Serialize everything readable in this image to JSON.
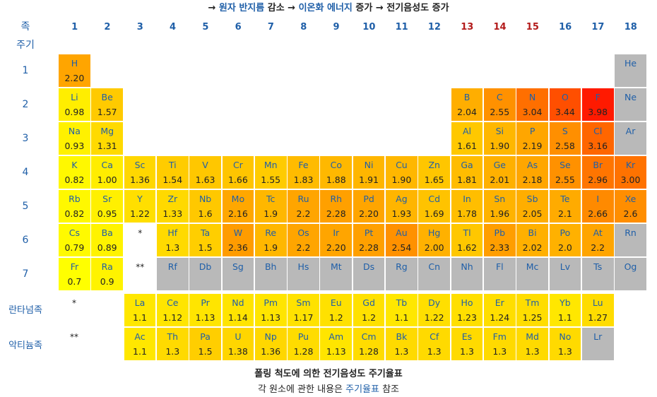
{
  "title_line": {
    "arrow1": "→ ",
    "part1": "원자 반지름",
    "part1b": " 감소 → ",
    "part2": "이온화 에너지",
    "part2b": " 증가 → ",
    "part3": "전기음성도",
    "part3b": " 증가"
  },
  "header": {
    "group_label": "족",
    "period_label": "주기",
    "groups": [
      "1",
      "2",
      "3",
      "4",
      "5",
      "6",
      "7",
      "8",
      "9",
      "10",
      "11",
      "12",
      "13",
      "14",
      "15",
      "16",
      "17",
      "18"
    ],
    "group_colors_note": "13-15 red",
    "red_groups": [
      13,
      14,
      15
    ],
    "periods": [
      "1",
      "2",
      "3",
      "4",
      "5",
      "6",
      "7"
    ],
    "lanthanide_label": "란타넘족",
    "actinide_label": "악티늄족",
    "lan_marker": "*",
    "act_marker": "**"
  },
  "chart_data": {
    "type": "table",
    "title": "폴링 척도에 의한 전기음성도 주기율표",
    "elements": [
      {
        "s": "H",
        "p": 1,
        "g": 1,
        "en": "2.20",
        "v": 2.2
      },
      {
        "s": "He",
        "p": 1,
        "g": 18,
        "en": "",
        "v": null
      },
      {
        "s": "Li",
        "p": 2,
        "g": 1,
        "en": "0.98",
        "v": 0.98
      },
      {
        "s": "Be",
        "p": 2,
        "g": 2,
        "en": "1.57",
        "v": 1.57
      },
      {
        "s": "B",
        "p": 2,
        "g": 13,
        "en": "2.04",
        "v": 2.04
      },
      {
        "s": "C",
        "p": 2,
        "g": 14,
        "en": "2.55",
        "v": 2.55
      },
      {
        "s": "N",
        "p": 2,
        "g": 15,
        "en": "3.04",
        "v": 3.04
      },
      {
        "s": "O",
        "p": 2,
        "g": 16,
        "en": "3.44",
        "v": 3.44
      },
      {
        "s": "F",
        "p": 2,
        "g": 17,
        "en": "3.98",
        "v": 3.98
      },
      {
        "s": "Ne",
        "p": 2,
        "g": 18,
        "en": "",
        "v": null
      },
      {
        "s": "Na",
        "p": 3,
        "g": 1,
        "en": "0.93",
        "v": 0.93
      },
      {
        "s": "Mg",
        "p": 3,
        "g": 2,
        "en": "1.31",
        "v": 1.31
      },
      {
        "s": "Al",
        "p": 3,
        "g": 13,
        "en": "1.61",
        "v": 1.61
      },
      {
        "s": "Si",
        "p": 3,
        "g": 14,
        "en": "1.90",
        "v": 1.9
      },
      {
        "s": "P",
        "p": 3,
        "g": 15,
        "en": "2.19",
        "v": 2.19
      },
      {
        "s": "S",
        "p": 3,
        "g": 16,
        "en": "2.58",
        "v": 2.58
      },
      {
        "s": "Cl",
        "p": 3,
        "g": 17,
        "en": "3.16",
        "v": 3.16
      },
      {
        "s": "Ar",
        "p": 3,
        "g": 18,
        "en": "",
        "v": null
      },
      {
        "s": "K",
        "p": 4,
        "g": 1,
        "en": "0.82",
        "v": 0.82
      },
      {
        "s": "Ca",
        "p": 4,
        "g": 2,
        "en": "1.00",
        "v": 1.0
      },
      {
        "s": "Sc",
        "p": 4,
        "g": 3,
        "en": "1.36",
        "v": 1.36
      },
      {
        "s": "Ti",
        "p": 4,
        "g": 4,
        "en": "1.54",
        "v": 1.54
      },
      {
        "s": "V",
        "p": 4,
        "g": 5,
        "en": "1.63",
        "v": 1.63
      },
      {
        "s": "Cr",
        "p": 4,
        "g": 6,
        "en": "1.66",
        "v": 1.66
      },
      {
        "s": "Mn",
        "p": 4,
        "g": 7,
        "en": "1.55",
        "v": 1.55
      },
      {
        "s": "Fe",
        "p": 4,
        "g": 8,
        "en": "1.83",
        "v": 1.83
      },
      {
        "s": "Co",
        "p": 4,
        "g": 9,
        "en": "1.88",
        "v": 1.88
      },
      {
        "s": "Ni",
        "p": 4,
        "g": 10,
        "en": "1.91",
        "v": 1.91
      },
      {
        "s": "Cu",
        "p": 4,
        "g": 11,
        "en": "1.90",
        "v": 1.9
      },
      {
        "s": "Zn",
        "p": 4,
        "g": 12,
        "en": "1.65",
        "v": 1.65
      },
      {
        "s": "Ga",
        "p": 4,
        "g": 13,
        "en": "1.81",
        "v": 1.81
      },
      {
        "s": "Ge",
        "p": 4,
        "g": 14,
        "en": "2.01",
        "v": 2.01
      },
      {
        "s": "As",
        "p": 4,
        "g": 15,
        "en": "2.18",
        "v": 2.18
      },
      {
        "s": "Se",
        "p": 4,
        "g": 16,
        "en": "2.55",
        "v": 2.55
      },
      {
        "s": "Br",
        "p": 4,
        "g": 17,
        "en": "2.96",
        "v": 2.96
      },
      {
        "s": "Kr",
        "p": 4,
        "g": 18,
        "en": "3.00",
        "v": 3.0
      },
      {
        "s": "Rb",
        "p": 5,
        "g": 1,
        "en": "0.82",
        "v": 0.82
      },
      {
        "s": "Sr",
        "p": 5,
        "g": 2,
        "en": "0.95",
        "v": 0.95
      },
      {
        "s": "Y",
        "p": 5,
        "g": 3,
        "en": "1.22",
        "v": 1.22
      },
      {
        "s": "Zr",
        "p": 5,
        "g": 4,
        "en": "1.33",
        "v": 1.33
      },
      {
        "s": "Nb",
        "p": 5,
        "g": 5,
        "en": "1.6",
        "v": 1.6
      },
      {
        "s": "Mo",
        "p": 5,
        "g": 6,
        "en": "2.16",
        "v": 2.16
      },
      {
        "s": "Tc",
        "p": 5,
        "g": 7,
        "en": "1.9",
        "v": 1.9
      },
      {
        "s": "Ru",
        "p": 5,
        "g": 8,
        "en": "2.2",
        "v": 2.2
      },
      {
        "s": "Rh",
        "p": 5,
        "g": 9,
        "en": "2.28",
        "v": 2.28
      },
      {
        "s": "Pd",
        "p": 5,
        "g": 10,
        "en": "2.20",
        "v": 2.2
      },
      {
        "s": "Ag",
        "p": 5,
        "g": 11,
        "en": "1.93",
        "v": 1.93
      },
      {
        "s": "Cd",
        "p": 5,
        "g": 12,
        "en": "1.69",
        "v": 1.69
      },
      {
        "s": "In",
        "p": 5,
        "g": 13,
        "en": "1.78",
        "v": 1.78
      },
      {
        "s": "Sn",
        "p": 5,
        "g": 14,
        "en": "1.96",
        "v": 1.96
      },
      {
        "s": "Sb",
        "p": 5,
        "g": 15,
        "en": "2.05",
        "v": 2.05
      },
      {
        "s": "Te",
        "p": 5,
        "g": 16,
        "en": "2.1",
        "v": 2.1
      },
      {
        "s": "I",
        "p": 5,
        "g": 17,
        "en": "2.66",
        "v": 2.66
      },
      {
        "s": "Xe",
        "p": 5,
        "g": 18,
        "en": "2.6",
        "v": 2.6
      },
      {
        "s": "Cs",
        "p": 6,
        "g": 1,
        "en": "0.79",
        "v": 0.79
      },
      {
        "s": "Ba",
        "p": 6,
        "g": 2,
        "en": "0.89",
        "v": 0.89
      },
      {
        "s": "Hf",
        "p": 6,
        "g": 4,
        "en": "1.3",
        "v": 1.3
      },
      {
        "s": "Ta",
        "p": 6,
        "g": 5,
        "en": "1.5",
        "v": 1.5
      },
      {
        "s": "W",
        "p": 6,
        "g": 6,
        "en": "2.36",
        "v": 2.36
      },
      {
        "s": "Re",
        "p": 6,
        "g": 7,
        "en": "1.9",
        "v": 1.9
      },
      {
        "s": "Os",
        "p": 6,
        "g": 8,
        "en": "2.2",
        "v": 2.2
      },
      {
        "s": "Ir",
        "p": 6,
        "g": 9,
        "en": "2.20",
        "v": 2.2
      },
      {
        "s": "Pt",
        "p": 6,
        "g": 10,
        "en": "2.28",
        "v": 2.28
      },
      {
        "s": "Au",
        "p": 6,
        "g": 11,
        "en": "2.54",
        "v": 2.54
      },
      {
        "s": "Hg",
        "p": 6,
        "g": 12,
        "en": "2.00",
        "v": 2.0
      },
      {
        "s": "Tl",
        "p": 6,
        "g": 13,
        "en": "1.62",
        "v": 1.62
      },
      {
        "s": "Pb",
        "p": 6,
        "g": 14,
        "en": "2.33",
        "v": 2.33
      },
      {
        "s": "Bi",
        "p": 6,
        "g": 15,
        "en": "2.02",
        "v": 2.02
      },
      {
        "s": "Po",
        "p": 6,
        "g": 16,
        "en": "2.0",
        "v": 2.0
      },
      {
        "s": "At",
        "p": 6,
        "g": 17,
        "en": "2.2",
        "v": 2.2
      },
      {
        "s": "Rn",
        "p": 6,
        "g": 18,
        "en": "",
        "v": null
      },
      {
        "s": "Fr",
        "p": 7,
        "g": 1,
        "en": "0.7",
        "v": 0.7
      },
      {
        "s": "Ra",
        "p": 7,
        "g": 2,
        "en": "0.9",
        "v": 0.9
      },
      {
        "s": "Rf",
        "p": 7,
        "g": 4,
        "en": "",
        "v": null
      },
      {
        "s": "Db",
        "p": 7,
        "g": 5,
        "en": "",
        "v": null
      },
      {
        "s": "Sg",
        "p": 7,
        "g": 6,
        "en": "",
        "v": null
      },
      {
        "s": "Bh",
        "p": 7,
        "g": 7,
        "en": "",
        "v": null
      },
      {
        "s": "Hs",
        "p": 7,
        "g": 8,
        "en": "",
        "v": null
      },
      {
        "s": "Mt",
        "p": 7,
        "g": 9,
        "en": "",
        "v": null
      },
      {
        "s": "Ds",
        "p": 7,
        "g": 10,
        "en": "",
        "v": null
      },
      {
        "s": "Rg",
        "p": 7,
        "g": 11,
        "en": "",
        "v": null
      },
      {
        "s": "Cn",
        "p": 7,
        "g": 12,
        "en": "",
        "v": null
      },
      {
        "s": "Nh",
        "p": 7,
        "g": 13,
        "en": "",
        "v": null
      },
      {
        "s": "Fl",
        "p": 7,
        "g": 14,
        "en": "",
        "v": null
      },
      {
        "s": "Mc",
        "p": 7,
        "g": 15,
        "en": "",
        "v": null
      },
      {
        "s": "Lv",
        "p": 7,
        "g": 16,
        "en": "",
        "v": null
      },
      {
        "s": "Ts",
        "p": 7,
        "g": 17,
        "en": "",
        "v": null
      },
      {
        "s": "Og",
        "p": 7,
        "g": 18,
        "en": "",
        "v": null
      },
      {
        "s": "La",
        "p": "lan",
        "g": 3,
        "en": "1.1",
        "v": 1.1
      },
      {
        "s": "Ce",
        "p": "lan",
        "g": 4,
        "en": "1.12",
        "v": 1.12
      },
      {
        "s": "Pr",
        "p": "lan",
        "g": 5,
        "en": "1.13",
        "v": 1.13
      },
      {
        "s": "Nd",
        "p": "lan",
        "g": 6,
        "en": "1.14",
        "v": 1.14
      },
      {
        "s": "Pm",
        "p": "lan",
        "g": 7,
        "en": "1.13",
        "v": 1.13
      },
      {
        "s": "Sm",
        "p": "lan",
        "g": 8,
        "en": "1.17",
        "v": 1.17
      },
      {
        "s": "Eu",
        "p": "lan",
        "g": 9,
        "en": "1.2",
        "v": 1.2
      },
      {
        "s": "Gd",
        "p": "lan",
        "g": 10,
        "en": "1.2",
        "v": 1.2
      },
      {
        "s": "Tb",
        "p": "lan",
        "g": 11,
        "en": "1.1",
        "v": 1.1
      },
      {
        "s": "Dy",
        "p": "lan",
        "g": 12,
        "en": "1.22",
        "v": 1.22
      },
      {
        "s": "Ho",
        "p": "lan",
        "g": 13,
        "en": "1.23",
        "v": 1.23
      },
      {
        "s": "Er",
        "p": "lan",
        "g": 14,
        "en": "1.24",
        "v": 1.24
      },
      {
        "s": "Tm",
        "p": "lan",
        "g": 15,
        "en": "1.25",
        "v": 1.25
      },
      {
        "s": "Yb",
        "p": "lan",
        "g": 16,
        "en": "1.1",
        "v": 1.1
      },
      {
        "s": "Lu",
        "p": "lan",
        "g": 17,
        "en": "1.27",
        "v": 1.27
      },
      {
        "s": "Ac",
        "p": "act",
        "g": 3,
        "en": "1.1",
        "v": 1.1
      },
      {
        "s": "Th",
        "p": "act",
        "g": 4,
        "en": "1.3",
        "v": 1.3
      },
      {
        "s": "Pa",
        "p": "act",
        "g": 5,
        "en": "1.5",
        "v": 1.5
      },
      {
        "s": "U",
        "p": "act",
        "g": 6,
        "en": "1.38",
        "v": 1.38
      },
      {
        "s": "Np",
        "p": "act",
        "g": 7,
        "en": "1.36",
        "v": 1.36
      },
      {
        "s": "Pu",
        "p": "act",
        "g": 8,
        "en": "1.28",
        "v": 1.28
      },
      {
        "s": "Am",
        "p": "act",
        "g": 9,
        "en": "1.13",
        "v": 1.13
      },
      {
        "s": "Cm",
        "p": "act",
        "g": 10,
        "en": "1.28",
        "v": 1.28
      },
      {
        "s": "Bk",
        "p": "act",
        "g": 11,
        "en": "1.3",
        "v": 1.3
      },
      {
        "s": "Cf",
        "p": "act",
        "g": 12,
        "en": "1.3",
        "v": 1.3
      },
      {
        "s": "Es",
        "p": "act",
        "g": 13,
        "en": "1.3",
        "v": 1.3
      },
      {
        "s": "Fm",
        "p": "act",
        "g": 14,
        "en": "1.3",
        "v": 1.3
      },
      {
        "s": "Md",
        "p": "act",
        "g": 15,
        "en": "1.3",
        "v": 1.3
      },
      {
        "s": "No",
        "p": "act",
        "g": 16,
        "en": "1.3",
        "v": 1.3
      },
      {
        "s": "Lr",
        "p": "act",
        "g": 17,
        "en": "",
        "v": null
      }
    ],
    "color_scale": {
      "no_data": "#b9b9b9",
      "stops": [
        "#ffff00",
        "#ffd700",
        "#ffb000",
        "#ff8a00",
        "#ff5a00",
        "#ff1a00"
      ]
    }
  },
  "caption": {
    "title": "폴링 척도에 의한 전기음성도 주기율표",
    "sub_before": "각 원소에 관한 내용은 ",
    "sub_link": "주기율표",
    "sub_after": " 참조"
  }
}
